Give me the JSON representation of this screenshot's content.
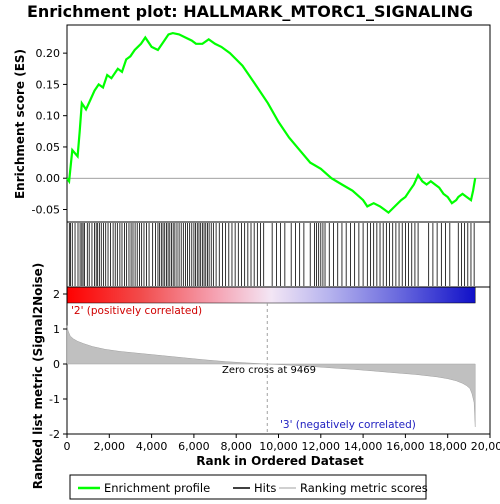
{
  "chart_data": {
    "type": "line",
    "title": "Enrichment plot: HALLMARK_MTORC1_SIGNALING",
    "panels": {
      "es": {
        "ylabel": "Enrichment score (ES)",
        "ylim": [
          -0.07,
          0.245
        ],
        "yticks": [
          0.2,
          0.15,
          0.1,
          0.05,
          0.0,
          -0.05
        ],
        "ytick_labels": [
          "0.20",
          "0.15",
          "0.10",
          "0.05",
          "0.00",
          "-0.05"
        ],
        "series": [
          {
            "name": "Enrichment profile",
            "color": "#00ff00",
            "x": [
              0,
              100,
              250,
              500,
              600,
              700,
              900,
              1100,
              1300,
              1500,
              1700,
              1900,
              2100,
              2400,
              2600,
              2800,
              3000,
              3200,
              3500,
              3700,
              4000,
              4300,
              4600,
              4800,
              5000,
              5300,
              5600,
              5900,
              6100,
              6400,
              6700,
              7000,
              7300,
              7700,
              8000,
              8300,
              8600,
              9000,
              9500,
              10000,
              10500,
              11000,
              11500,
              12000,
              12500,
              13000,
              13500,
              14000,
              14200,
              14500,
              14800,
              15000,
              15200,
              15500,
              15800,
              16000,
              16200,
              16400,
              16600,
              16800,
              17000,
              17200,
              17400,
              17600,
              17800,
              18000,
              18200,
              18400,
              18500,
              18700,
              18900,
              19100,
              19200,
              19300
            ],
            "y": [
              0.0,
              -0.005,
              0.045,
              0.035,
              0.075,
              0.12,
              0.11,
              0.125,
              0.14,
              0.15,
              0.145,
              0.165,
              0.16,
              0.175,
              0.17,
              0.19,
              0.195,
              0.205,
              0.215,
              0.225,
              0.21,
              0.205,
              0.22,
              0.23,
              0.232,
              0.23,
              0.225,
              0.22,
              0.215,
              0.215,
              0.222,
              0.215,
              0.21,
              0.2,
              0.19,
              0.18,
              0.165,
              0.145,
              0.12,
              0.09,
              0.065,
              0.045,
              0.025,
              0.015,
              0.0,
              -0.01,
              -0.02,
              -0.035,
              -0.045,
              -0.04,
              -0.045,
              -0.05,
              -0.055,
              -0.045,
              -0.035,
              -0.03,
              -0.02,
              -0.01,
              0.005,
              -0.005,
              -0.01,
              -0.005,
              -0.01,
              -0.015,
              -0.025,
              -0.03,
              -0.04,
              -0.035,
              -0.03,
              -0.025,
              -0.03,
              -0.035,
              -0.02,
              0.0
            ]
          }
        ]
      },
      "metric": {
        "ylabel": "Ranked list metric (Signal2Noise)",
        "ylim": [
          -2,
          2.2
        ],
        "yticks": [
          2,
          1,
          0,
          -1,
          -2
        ],
        "ytick_labels": [
          "2",
          "1",
          "0",
          "-1",
          "-2"
        ],
        "series": [
          {
            "name": "Ranking metric scores",
            "color": "#c0c0c0",
            "x": [
              0,
              50,
              150,
              300,
              500,
              800,
              1200,
              1800,
              2500,
              3500,
              4500,
              5500,
              6500,
              7500,
              8500,
              9469,
              10500,
              11500,
              12500,
              13500,
              14500,
              15500,
              16500,
              17500,
              18000,
              18400,
              18700,
              18900,
              19050,
              19150,
              19250,
              19300
            ],
            "y": [
              1.1,
              0.95,
              0.8,
              0.72,
              0.65,
              0.58,
              0.5,
              0.42,
              0.36,
              0.3,
              0.24,
              0.18,
              0.12,
              0.07,
              0.03,
              0.0,
              -0.03,
              -0.07,
              -0.11,
              -0.15,
              -0.2,
              -0.25,
              -0.3,
              -0.37,
              -0.42,
              -0.48,
              -0.55,
              -0.62,
              -0.7,
              -0.85,
              -1.1,
              -1.8
            ]
          }
        ],
        "annotations": {
          "positive": "'2' (positively correlated)",
          "negative": "'3' (negatively correlated)",
          "zero_cross": "Zero cross at 9469"
        },
        "zero_cross_x": 9469
      }
    },
    "hits": [
      110,
      170,
      250,
      380,
      520,
      620,
      700,
      760,
      830,
      960,
      1050,
      1180,
      1300,
      1380,
      1450,
      1530,
      1620,
      1720,
      1830,
      1940,
      2060,
      2180,
      2280,
      2380,
      2500,
      2600,
      2720,
      2820,
      2930,
      3030,
      3120,
      3220,
      3320,
      3430,
      3530,
      3640,
      3760,
      3880,
      4050,
      4180,
      4300,
      4380,
      4460,
      4540,
      4620,
      4700,
      4780,
      4860,
      4940,
      5020,
      5100,
      5200,
      5300,
      5400,
      5500,
      5600,
      5700,
      5800,
      5900,
      6000,
      6080,
      6160,
      6240,
      6320,
      6400,
      6480,
      6560,
      6640,
      6720,
      6820,
      6920,
      7050,
      7200,
      7350,
      7500,
      7650,
      7800,
      7950,
      8100,
      8250,
      8400,
      8550,
      8700,
      8850,
      9000,
      9150,
      9300,
      9700,
      9900,
      10100,
      10300,
      10600,
      10800,
      11000,
      11200,
      11500,
      11700,
      11800,
      11900,
      12000,
      12100,
      12200,
      12400,
      12600,
      12800,
      13000,
      13200,
      13400,
      13600,
      13800,
      14000,
      14200,
      14350,
      14500,
      14650,
      14800,
      14950,
      15100,
      15250,
      15400,
      15550,
      15700,
      15850,
      16000,
      16150,
      16300,
      16450,
      16600,
      17100,
      17300,
      17500,
      17700,
      17900,
      18100,
      18500,
      18650,
      18800,
      18950,
      19100,
      19250
    ],
    "x_axis": {
      "label": "Rank in Ordered Dataset",
      "xlim": [
        0,
        20000
      ],
      "ticks": [
        0,
        2000,
        4000,
        6000,
        8000,
        10000,
        12000,
        14000,
        16000,
        18000,
        20000
      ],
      "tick_labels": [
        "0",
        "2,000",
        "4,000",
        "6,000",
        "8,000",
        "10,000",
        "12,000",
        "14,000",
        "16,000",
        "18,000",
        "20,000"
      ],
      "max_rank": 19300
    },
    "legend": {
      "placement": "bottom",
      "items": [
        {
          "name": "Enrichment profile",
          "color": "#00ff00"
        },
        {
          "name": "Hits",
          "color": "#000000"
        },
        {
          "name": "Ranking metric scores",
          "color": "#c0c0c0"
        }
      ]
    }
  }
}
